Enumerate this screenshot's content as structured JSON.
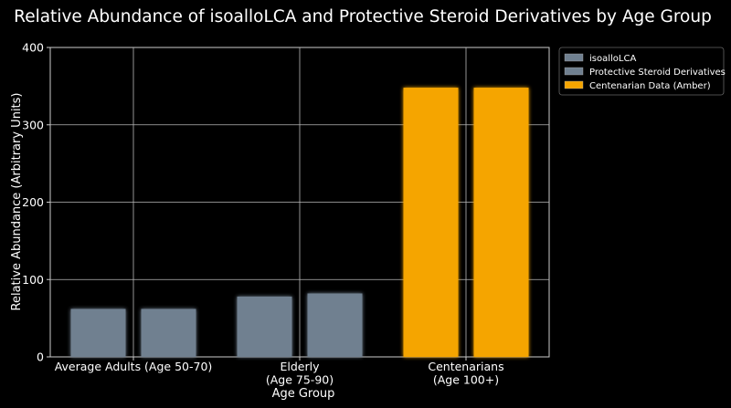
{
  "chart_data": {
    "type": "bar",
    "title": "Relative Abundance of isoalloLCA and Protective Steroid Derivatives by Age Group",
    "xlabel": "Age Group",
    "ylabel": "Relative Abundance (Arbitrary Units)",
    "categories": [
      [
        "Average Adults (Age 50-70)"
      ],
      [
        "Elderly",
        "(Age 75-90)"
      ],
      [
        "Centenarians",
        "(Age 100+)"
      ]
    ],
    "series": [
      {
        "name": "isoalloLCA",
        "values": [
          62,
          78,
          348
        ]
      },
      {
        "name": "Protective Steroid Derivatives",
        "values": [
          62,
          82,
          348
        ]
      }
    ],
    "highlight": {
      "name": "Centenarian Data (Amber)",
      "category_index": 2,
      "color": "#f5a500"
    },
    "bar_color": "#708090",
    "ylim": [
      0,
      400
    ],
    "yticks": [
      0,
      100,
      200,
      300,
      400
    ],
    "grid": true,
    "legend_position": "top-right",
    "background": "#000000"
  }
}
